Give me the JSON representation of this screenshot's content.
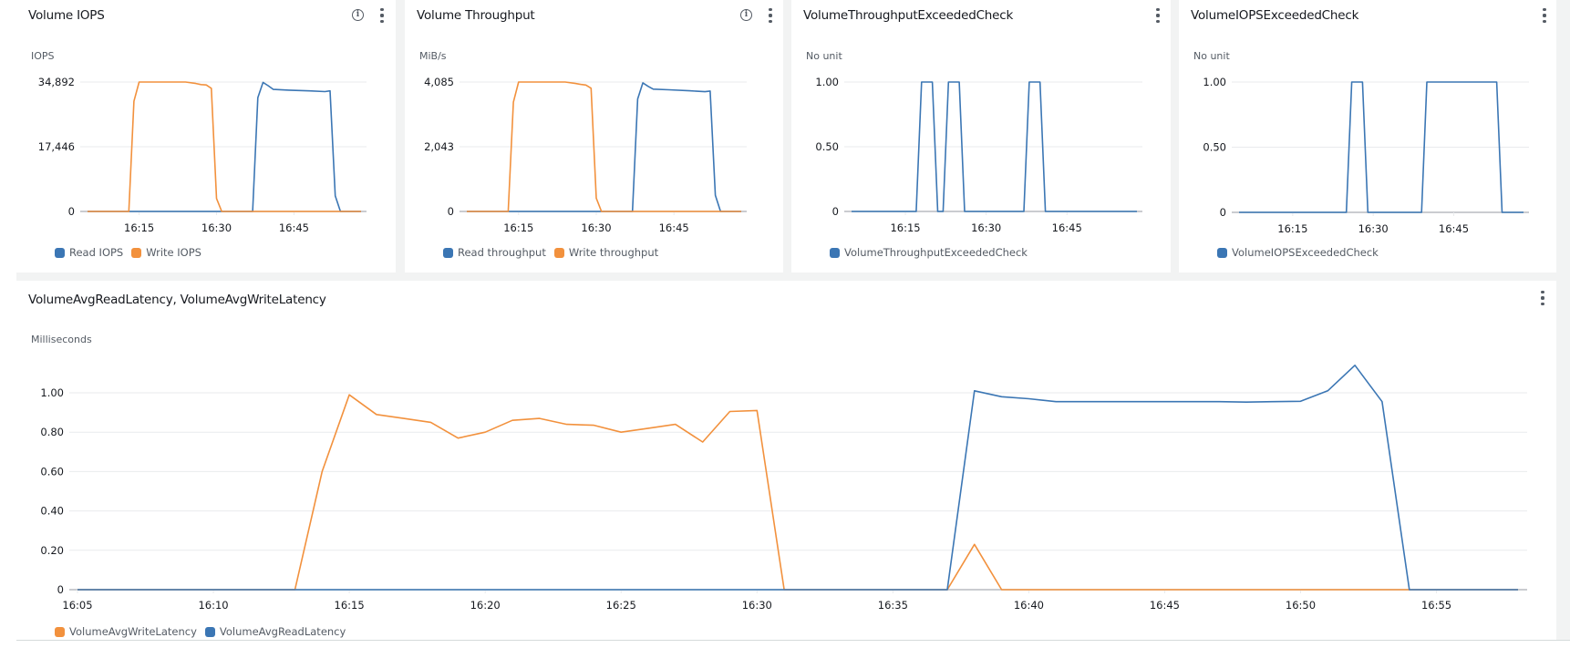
{
  "colors": {
    "read": "#3b76b4",
    "write": "#f2913d",
    "grid": "#e9ebed",
    "axis": "#b8bcc0",
    "tick_text": "#16191f"
  },
  "panels": [
    {
      "title": "Volume IOPS",
      "has_info": true,
      "unit": "IOPS",
      "legend": [
        {
          "label": "Read IOPS",
          "color": "#3b76b4"
        },
        {
          "label": "Write IOPS",
          "color": "#f2913d"
        }
      ]
    },
    {
      "title": "Volume Throughput",
      "has_info": true,
      "unit": "MiB/s",
      "legend": [
        {
          "label": "Read throughput",
          "color": "#3b76b4"
        },
        {
          "label": "Write throughput",
          "color": "#f2913d"
        }
      ]
    },
    {
      "title": "VolumeThroughputExceededCheck",
      "has_info": false,
      "unit": "No unit",
      "legend": [
        {
          "label": "VolumeThroughputExceededCheck",
          "color": "#3b76b4"
        }
      ]
    },
    {
      "title": "VolumeIOPSExceededCheck",
      "has_info": false,
      "unit": "No unit",
      "legend": [
        {
          "label": "VolumeIOPSExceededCheck",
          "color": "#3b76b4"
        }
      ]
    },
    {
      "title": "VolumeAvgReadLatency, VolumeAvgWriteLatency",
      "has_info": false,
      "unit": "Milliseconds",
      "legend": [
        {
          "label": "VolumeAvgWriteLatency",
          "color": "#f2913d"
        },
        {
          "label": "VolumeAvgReadLatency",
          "color": "#3b76b4"
        }
      ]
    }
  ],
  "chart_data": [
    {
      "type": "line",
      "title": "Volume IOPS",
      "ylabel": "IOPS",
      "xlabel": "",
      "x_unit": "minutes since 16:00",
      "xticks": [
        {
          "t": 15,
          "label": "16:15"
        },
        {
          "t": 30,
          "label": "16:30"
        },
        {
          "t": 45,
          "label": "16:45"
        }
      ],
      "yticks": [
        {
          "v": 0,
          "label": "0"
        },
        {
          "v": 17446,
          "label": "17,446"
        },
        {
          "v": 34892,
          "label": "34,892"
        }
      ],
      "ylim": [
        0,
        34892
      ],
      "xlim": [
        5,
        58
      ],
      "grid": true,
      "legend_position": "bottom",
      "series": [
        {
          "name": "Read IOPS",
          "color": "#3b76b4",
          "x": [
            5,
            37,
            38,
            39,
            40,
            41,
            44,
            48,
            51,
            52,
            53,
            54,
            58
          ],
          "values": [
            0,
            0,
            30700,
            34800,
            33900,
            32900,
            32700,
            32500,
            32300,
            32500,
            4200,
            0,
            0
          ]
        },
        {
          "name": "Write IOPS",
          "color": "#f2913d",
          "x": [
            5,
            13,
            14,
            15,
            20,
            24,
            26,
            27,
            28,
            29,
            30,
            31,
            37,
            58
          ],
          "values": [
            0,
            0,
            29700,
            34892,
            34892,
            34892,
            34500,
            34200,
            34100,
            33200,
            3500,
            0,
            0,
            0
          ]
        }
      ]
    },
    {
      "type": "line",
      "title": "Volume Throughput",
      "ylabel": "MiB/s",
      "xlabel": "",
      "x_unit": "minutes since 16:00",
      "xticks": [
        {
          "t": 15,
          "label": "16:15"
        },
        {
          "t": 30,
          "label": "16:30"
        },
        {
          "t": 45,
          "label": "16:45"
        }
      ],
      "yticks": [
        {
          "v": 0,
          "label": "0"
        },
        {
          "v": 2043,
          "label": "2,043"
        },
        {
          "v": 4085,
          "label": "4,085"
        }
      ],
      "ylim": [
        0,
        4085
      ],
      "xlim": [
        5,
        58
      ],
      "grid": true,
      "legend_position": "bottom",
      "series": [
        {
          "name": "Read throughput",
          "color": "#3b76b4",
          "x": [
            5,
            37,
            38,
            39,
            40,
            41,
            44,
            48,
            51,
            52,
            53,
            54,
            58
          ],
          "values": [
            0,
            0,
            3550,
            4060,
            3950,
            3860,
            3840,
            3810,
            3780,
            3800,
            510,
            0,
            0
          ]
        },
        {
          "name": "Write throughput",
          "color": "#f2913d",
          "x": [
            5,
            13,
            14,
            15,
            20,
            24,
            26,
            27,
            28,
            29,
            30,
            31,
            58
          ],
          "values": [
            0,
            0,
            3450,
            4085,
            4085,
            4085,
            4040,
            4010,
            3990,
            3890,
            420,
            0,
            0
          ]
        }
      ]
    },
    {
      "type": "line",
      "title": "VolumeThroughputExceededCheck",
      "ylabel": "No unit",
      "xlabel": "",
      "x_unit": "minutes since 16:00",
      "xticks": [
        {
          "t": 15,
          "label": "16:15"
        },
        {
          "t": 30,
          "label": "16:30"
        },
        {
          "t": 45,
          "label": "16:45"
        }
      ],
      "yticks": [
        {
          "v": 0,
          "label": "0"
        },
        {
          "v": 0.5,
          "label": "0.50"
        },
        {
          "v": 1,
          "label": "1.00"
        }
      ],
      "ylim": [
        0,
        1
      ],
      "xlim": [
        5,
        58
      ],
      "grid": true,
      "legend_position": "bottom",
      "series": [
        {
          "name": "VolumeThroughputExceededCheck",
          "color": "#3b76b4",
          "x": [
            5,
            17,
            18,
            20,
            21,
            22,
            23,
            25,
            26,
            37,
            38,
            40,
            41,
            58
          ],
          "values": [
            0,
            0,
            1,
            1,
            0,
            0,
            1,
            1,
            0,
            0,
            1,
            1,
            0,
            0
          ]
        }
      ]
    },
    {
      "type": "line",
      "title": "VolumeIOPSExceededCheck",
      "ylabel": "No unit",
      "xlabel": "",
      "x_unit": "minutes since 16:00",
      "xticks": [
        {
          "t": 15,
          "label": "16:15"
        },
        {
          "t": 30,
          "label": "16:30"
        },
        {
          "t": 45,
          "label": "16:45"
        }
      ],
      "yticks": [
        {
          "v": 0,
          "label": "0"
        },
        {
          "v": 0.5,
          "label": "0.50"
        },
        {
          "v": 1,
          "label": "1.00"
        }
      ],
      "ylim": [
        0,
        1
      ],
      "xlim": [
        5,
        58
      ],
      "grid": true,
      "legend_position": "bottom",
      "series": [
        {
          "name": "VolumeIOPSExceededCheck",
          "color": "#3b76b4",
          "x": [
            5,
            25,
            26,
            28,
            29,
            39,
            40,
            53,
            54,
            58
          ],
          "values": [
            0,
            0,
            1,
            1,
            0,
            0,
            1,
            1,
            0,
            0
          ]
        }
      ]
    },
    {
      "type": "line",
      "title": "VolumeAvgReadLatency, VolumeAvgWriteLatency",
      "ylabel": "Milliseconds",
      "xlabel": "",
      "x_unit": "minutes since 16:00",
      "xticks": [
        {
          "t": 5,
          "label": "16:05"
        },
        {
          "t": 10,
          "label": "16:10"
        },
        {
          "t": 15,
          "label": "16:15"
        },
        {
          "t": 20,
          "label": "16:20"
        },
        {
          "t": 25,
          "label": "16:25"
        },
        {
          "t": 30,
          "label": "16:30"
        },
        {
          "t": 35,
          "label": "16:35"
        },
        {
          "t": 40,
          "label": "16:40"
        },
        {
          "t": 45,
          "label": "16:45"
        },
        {
          "t": 50,
          "label": "16:50"
        },
        {
          "t": 55,
          "label": "16:55"
        }
      ],
      "yticks": [
        {
          "v": 0,
          "label": "0"
        },
        {
          "v": 0.2,
          "label": "0.20"
        },
        {
          "v": 0.4,
          "label": "0.40"
        },
        {
          "v": 0.6,
          "label": "0.60"
        },
        {
          "v": 0.8,
          "label": "0.80"
        },
        {
          "v": 1.0,
          "label": "1.00"
        }
      ],
      "ylim": [
        0,
        1.2
      ],
      "xlim": [
        5,
        58
      ],
      "grid": true,
      "legend_position": "bottom",
      "series": [
        {
          "name": "VolumeAvgWriteLatency",
          "color": "#f2913d",
          "x": [
            5,
            13,
            14,
            15,
            16,
            17,
            18,
            19,
            20,
            21,
            22,
            23,
            24,
            25,
            26,
            27,
            28,
            29,
            30,
            31,
            37,
            38,
            39,
            58
          ],
          "values": [
            0,
            0,
            0.6,
            0.99,
            0.89,
            0.87,
            0.85,
            0.77,
            0.8,
            0.86,
            0.87,
            0.84,
            0.835,
            0.8,
            0.82,
            0.84,
            0.75,
            0.905,
            0.91,
            0,
            0,
            0.23,
            0,
            0
          ]
        },
        {
          "name": "VolumeAvgReadLatency",
          "color": "#3b76b4",
          "x": [
            5,
            37,
            38,
            39,
            40,
            41,
            42,
            43,
            44,
            45,
            46,
            47,
            48,
            49,
            50,
            51,
            52,
            53,
            54,
            58
          ],
          "values": [
            0,
            0,
            1.01,
            0.98,
            0.97,
            0.955,
            0.955,
            0.955,
            0.955,
            0.955,
            0.955,
            0.955,
            0.953,
            0.955,
            0.957,
            1.01,
            1.14,
            0.955,
            0,
            0
          ]
        }
      ]
    }
  ]
}
